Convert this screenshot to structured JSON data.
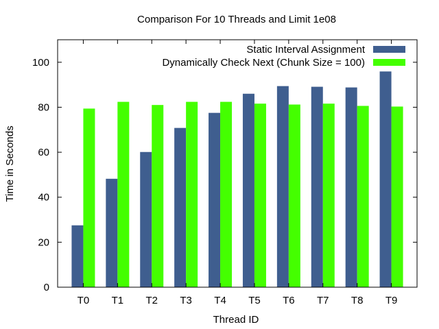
{
  "chart_data": {
    "type": "bar",
    "title": "Comparison For 10 Threads and Limit 1e08",
    "xlabel": "Thread ID",
    "ylabel": "Time in Seconds",
    "categories": [
      "T0",
      "T1",
      "T2",
      "T3",
      "T4",
      "T5",
      "T6",
      "T7",
      "T8",
      "T9"
    ],
    "ylim": [
      0,
      110
    ],
    "yticks": [
      0,
      20,
      40,
      60,
      80,
      100
    ],
    "grid": false,
    "legend_position": "top-right",
    "series": [
      {
        "name": "Static Interval Assignment",
        "color": "#3f5e8f",
        "values": [
          27.5,
          48.2,
          60.1,
          70.8,
          77.5,
          86.0,
          89.4,
          89.1,
          88.8,
          95.9
        ]
      },
      {
        "name": "Dynamically Check Next (Chunk Size = 100)",
        "color": "#44ff00",
        "values": [
          79.4,
          82.4,
          81.0,
          82.4,
          82.4,
          81.6,
          81.2,
          81.6,
          80.6,
          80.3
        ]
      }
    ]
  }
}
